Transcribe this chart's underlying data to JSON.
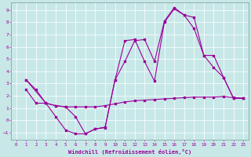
{
  "xlabel": "Windchill (Refroidissement éolien,°C)",
  "bg_color": "#c8e8e8",
  "grid_color": "#ffffff",
  "line_color": "#990099",
  "xlim": [
    -0.5,
    23.5
  ],
  "ylim": [
    -1.6,
    9.6
  ],
  "xticks": [
    0,
    1,
    2,
    3,
    4,
    5,
    6,
    7,
    8,
    9,
    10,
    11,
    12,
    13,
    14,
    15,
    16,
    17,
    18,
    19,
    20,
    21,
    22,
    23
  ],
  "yticks": [
    -1,
    0,
    1,
    2,
    3,
    4,
    5,
    6,
    7,
    8,
    9
  ],
  "line1_x": [
    1,
    2,
    3,
    4,
    5,
    6,
    7,
    8,
    9,
    10,
    11,
    12,
    13,
    14,
    15,
    16,
    17,
    18,
    19,
    20,
    21,
    22,
    23
  ],
  "line1_y": [
    3.3,
    2.5,
    1.4,
    1.2,
    1.1,
    1.1,
    1.1,
    1.1,
    1.2,
    1.35,
    1.5,
    1.6,
    1.65,
    1.7,
    1.75,
    1.8,
    1.85,
    1.9,
    1.9,
    1.9,
    1.95,
    1.85,
    1.8
  ],
  "line2_x": [
    1,
    2,
    3,
    4,
    5,
    6,
    7,
    8,
    9,
    10,
    11,
    12,
    13,
    14,
    15,
    16,
    17,
    18,
    19,
    20,
    21,
    22,
    23
  ],
  "line2_y": [
    2.5,
    1.4,
    1.4,
    0.3,
    -0.8,
    -1.1,
    -1.1,
    -0.7,
    -0.6,
    3.3,
    4.8,
    6.5,
    6.6,
    4.8,
    8.1,
    9.2,
    8.6,
    8.4,
    5.3,
    5.3,
    3.5,
    1.8,
    1.8
  ],
  "line3_x": [
    1,
    3,
    4,
    5,
    6,
    7,
    8,
    9,
    10,
    11,
    12,
    13,
    14,
    15,
    16,
    17,
    18,
    19,
    20,
    21,
    22,
    23
  ],
  "line3_y": [
    3.3,
    1.4,
    1.2,
    1.1,
    0.3,
    -1.1,
    -0.7,
    -0.55,
    3.3,
    6.5,
    6.6,
    4.8,
    3.2,
    8.0,
    9.1,
    8.6,
    7.5,
    5.3,
    4.3,
    3.5,
    1.8,
    1.8
  ]
}
